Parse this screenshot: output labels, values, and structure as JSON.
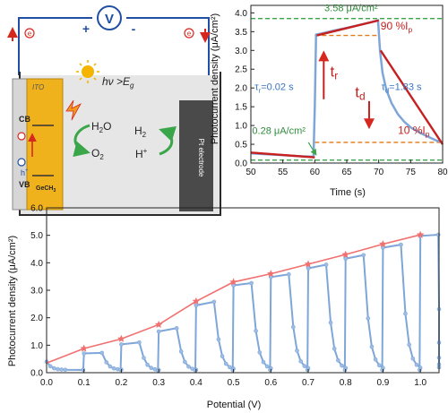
{
  "schematic": {
    "voltmeter_symbol": "V",
    "plus_sign": "+",
    "minus_sign": "-",
    "electron_symbol": "e",
    "ito_label": "ITO",
    "light_label_prefix": "hν >E",
    "light_label_sub": "g",
    "cb_label": "CB",
    "vb_label": "VB",
    "hole_symbol": "h",
    "hole_sup": "+",
    "material_label": "GeCH",
    "material_sub": "3",
    "water_label": "H",
    "water_sub": "2",
    "water_suffix": "O",
    "oxygen_label": "O",
    "oxygen_sub": "2",
    "hydrogen_label": "H",
    "hydrogen_sub": "2",
    "proton_label": "H",
    "proton_sup": "+",
    "counter_electrode_label": "Pt electrode",
    "colors": {
      "red": "#d6281e",
      "blue": "#1f4ea3",
      "gold": "#f0b21c",
      "green": "#3aa64a",
      "electrolyte": "#e6e6e6"
    }
  },
  "chart_data": [
    {
      "type": "line",
      "title": "",
      "xlabel": "Time (s)",
      "ylabel": "Photocurrent density (μA/cm²)",
      "xlim": [
        50,
        80
      ],
      "ylim": [
        0,
        4.2
      ],
      "xticks": [
        50,
        55,
        60,
        65,
        70,
        75,
        80
      ],
      "yticks": [
        0.0,
        0.5,
        1.0,
        1.5,
        2.0,
        2.5,
        3.0,
        3.5,
        4.0
      ],
      "xtick_labels": [
        "50",
        "55",
        "60",
        "65",
        "70",
        "75",
        "80"
      ],
      "ytick_labels": [
        "0.0",
        "0.5",
        "1.0",
        "1.5",
        "2.0",
        "2.5",
        "3.0",
        "3.5",
        "4.0"
      ],
      "series": [
        {
          "color": "#7ea6d8",
          "x": [
            50,
            52,
            54,
            56,
            58,
            59.8,
            60.0,
            60.2,
            61,
            63,
            65,
            67,
            69,
            69.9,
            70.2,
            70.6,
            71.2,
            72,
            73,
            74,
            75,
            76,
            77,
            78,
            79,
            80
          ],
          "y": [
            0.26,
            0.24,
            0.22,
            0.2,
            0.18,
            0.17,
            1.5,
            3.42,
            3.45,
            3.53,
            3.6,
            3.68,
            3.76,
            3.8,
            3.0,
            2.4,
            1.95,
            1.6,
            1.3,
            1.1,
            0.95,
            0.85,
            0.76,
            0.68,
            0.6,
            0.55
          ]
        }
      ],
      "fit_segments": [
        {
          "x": [
            50,
            60
          ],
          "y": [
            0.28,
            0.15
          ]
        },
        {
          "x": [
            60.3,
            70
          ],
          "y": [
            3.4,
            3.8
          ]
        },
        {
          "x": [
            70.3,
            80
          ],
          "y": [
            3.0,
            0.5
          ]
        }
      ],
      "dashed_levels": [
        {
          "y": 3.85,
          "x": [
            50,
            80
          ],
          "color": "#3aa64a"
        },
        {
          "y": 0.08,
          "x": [
            50,
            80
          ],
          "color": "#3aa64a"
        },
        {
          "y": 3.4,
          "x": [
            60,
            70
          ],
          "color": "#e07b1a"
        },
        {
          "y": 0.55,
          "x": [
            60,
            80
          ],
          "color": "#e07b1a"
        }
      ],
      "annotations": {
        "peak_value": "3.58 μA/cm²",
        "base_value": "0.28 μA/cm²",
        "tau_r": "τ",
        "tau_r_sub": "r",
        "tau_r_value": "=0.02 s",
        "tau_d": "τ",
        "tau_d_sub": "d",
        "tau_d_value": "=1.83 s",
        "t_r": "t",
        "t_r_sub": "r",
        "t_d": "t",
        "t_d_sub": "d",
        "pct_90": "90 %I",
        "pct_90_sub": "p",
        "pct_10": "10 %I",
        "pct_10_sub": "p"
      }
    },
    {
      "type": "line",
      "title": "",
      "xlabel": "Potential (V)",
      "ylabel": "Photocurrent density (μA/cm²)",
      "xlim": [
        0,
        1.05
      ],
      "ylim": [
        0,
        6.0
      ],
      "xticks": [
        0.0,
        0.1,
        0.2,
        0.3,
        0.4,
        0.5,
        0.6,
        0.7,
        0.8,
        0.9,
        1.0
      ],
      "yticks": [
        0.0,
        1.0,
        2.0,
        3.0,
        4.0,
        5.0,
        6.0
      ],
      "xtick_labels": [
        "0.0",
        "0.1",
        "0.2",
        "0.3",
        "0.4",
        "0.5",
        "0.6",
        "0.7",
        "0.8",
        "0.9",
        "1.0"
      ],
      "ytick_labels": [
        "0.0",
        "1.0",
        "2.0",
        "3.0",
        "4.0",
        "5.0",
        "6.0"
      ],
      "envelope": {
        "color": "#f07070",
        "x": [
          0.0,
          0.1,
          0.2,
          0.3,
          0.4,
          0.5,
          0.6,
          0.7,
          0.8,
          0.9,
          1.0
        ],
        "y": [
          0.35,
          0.88,
          1.23,
          1.75,
          2.6,
          3.3,
          3.6,
          3.95,
          4.3,
          4.68,
          5.02
        ]
      },
      "pulses": {
        "color": "#7ea6d8",
        "on": [
          0.1,
          0.2,
          0.3,
          0.4,
          0.5,
          0.6,
          0.7,
          0.8,
          0.9,
          1.0
        ],
        "off": [
          0.05,
          0.15,
          0.25,
          0.35,
          0.45,
          0.55,
          0.65,
          0.75,
          0.85,
          0.95,
          1.05
        ],
        "peak": [
          0.7,
          1.03,
          1.5,
          2.45,
          3.18,
          3.48,
          3.8,
          4.15,
          4.55,
          4.98
        ],
        "plateau_end": [
          0.72,
          1.1,
          1.62,
          2.58,
          3.26,
          3.58,
          3.93,
          4.28,
          4.66,
          5.02
        ],
        "dark_level": [
          0.1,
          0.1,
          0.08,
          0.08,
          0.1,
          0.1,
          0.1,
          0.1,
          0.1,
          0.1,
          0.1
        ]
      }
    }
  ]
}
